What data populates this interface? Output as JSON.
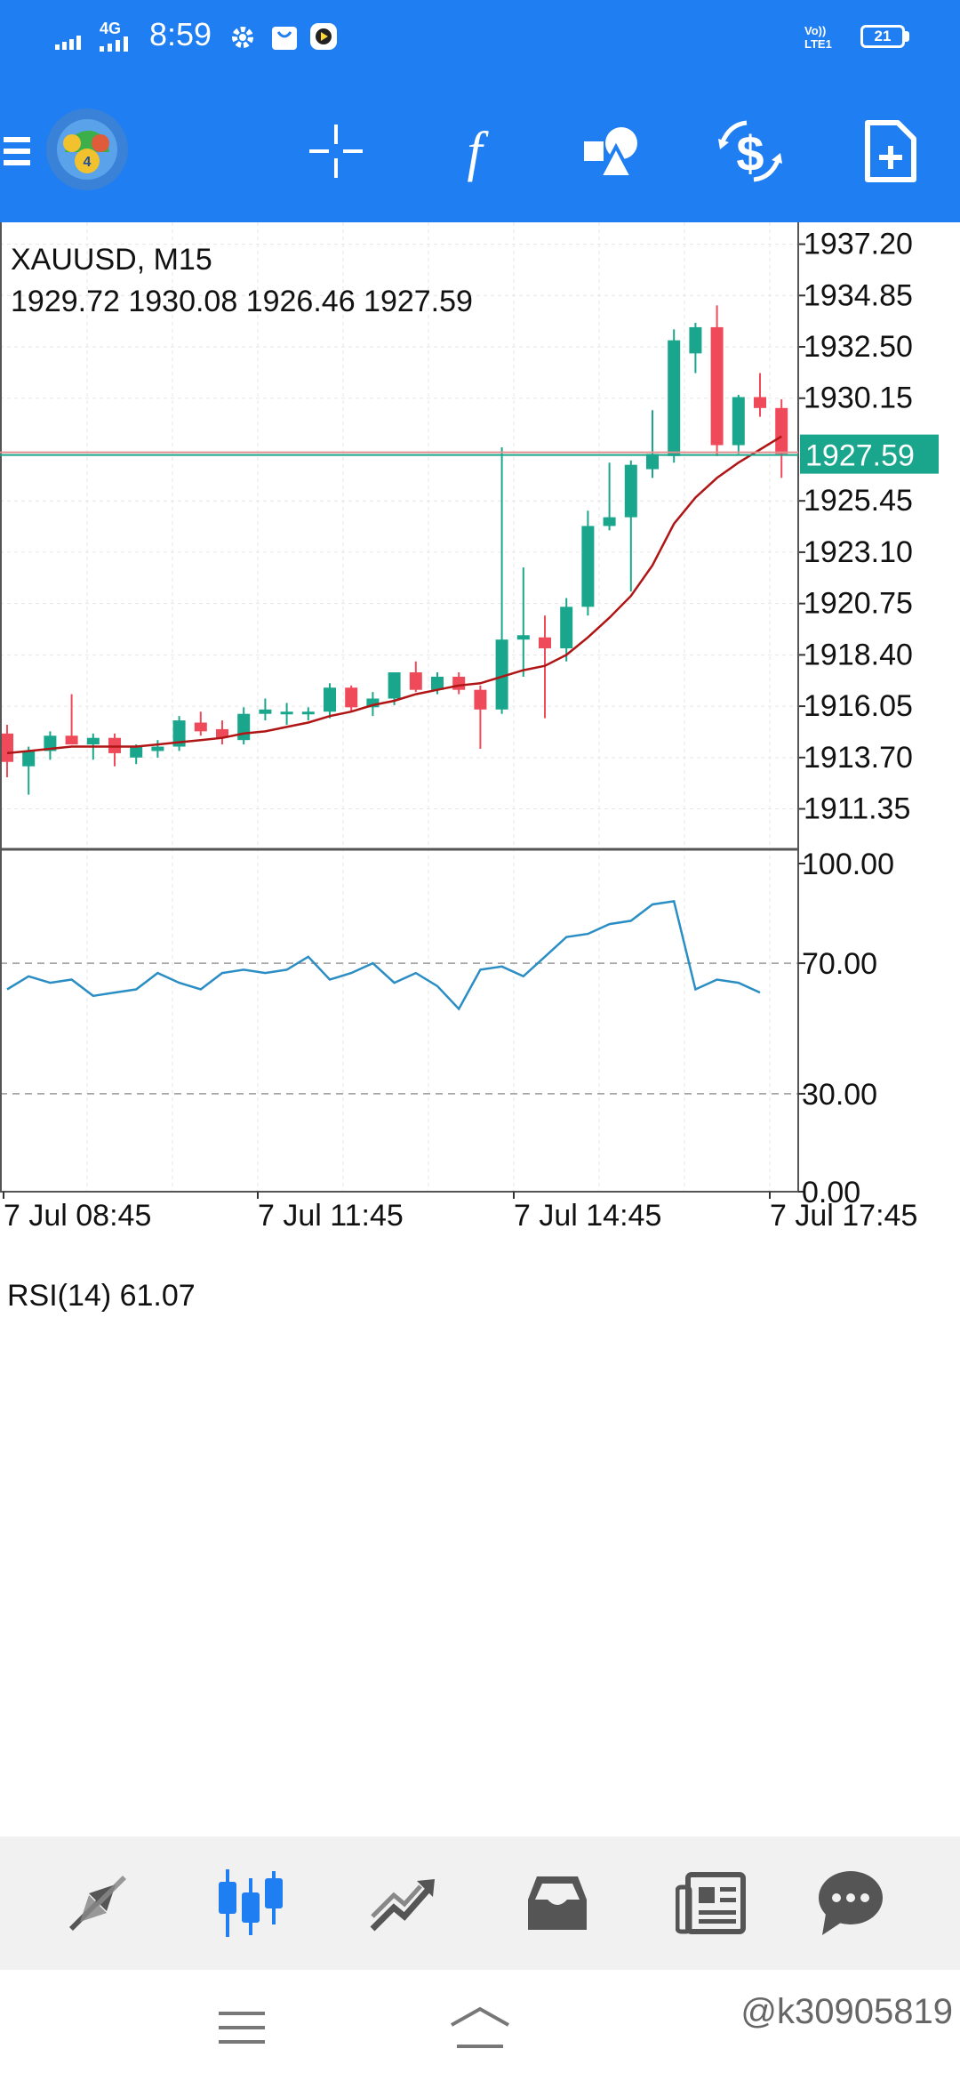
{
  "status_bar": {
    "time": "8:59",
    "network": "4G",
    "volte": "Vo)) LTE1",
    "battery": "21"
  },
  "toolbar": {
    "menu_icon": "hamburger-icon",
    "logo_icon": "metatrader-logo-icon",
    "crosshair_icon": "crosshair-icon",
    "indicators_icon": "function-icon",
    "objects_icon": "shapes-icon",
    "symbol_icon": "dollar-switch-icon",
    "new_order_icon": "new-document-icon",
    "accent": "#1f7ef2"
  },
  "chart": {
    "symbol_label": "XAUUSD, M15",
    "ohlc_label": "1929.72 1930.08 1926.46 1927.59",
    "current_price_label": "1927.59",
    "price_ticks": [
      "1937.20",
      "1934.85",
      "1932.50",
      "1930.15",
      "1925.45",
      "1923.10",
      "1920.75",
      "1918.40",
      "1916.05",
      "1913.70",
      "1911.35"
    ],
    "rsi_label": "RSI(14) 61.07",
    "rsi_ticks": [
      "100.00",
      "70.00",
      "30.00",
      "0.00"
    ],
    "time_labels": [
      "7 Jul 08:45",
      "7 Jul 11:45",
      "7 Jul 14:45",
      "7 Jul 17:45"
    ],
    "bull_color": "#1aa68c",
    "bear_color": "#ef4a5a",
    "ma_color": "#b01515",
    "rsi_color": "#2a8ec4"
  },
  "chart_data": {
    "type": "candlestick",
    "symbol": "XAUUSD",
    "timeframe": "M15",
    "ylim": [
      1909.5,
      1938.2
    ],
    "last_price": 1927.59,
    "candles": [
      {
        "o": 1914.8,
        "h": 1915.2,
        "l": 1912.8,
        "c": 1913.5
      },
      {
        "o": 1913.3,
        "h": 1914.2,
        "l": 1912.0,
        "c": 1914.0
      },
      {
        "o": 1914.0,
        "h": 1914.9,
        "l": 1913.6,
        "c": 1914.7
      },
      {
        "o": 1914.7,
        "h": 1916.6,
        "l": 1914.3,
        "c": 1914.3
      },
      {
        "o": 1914.3,
        "h": 1914.8,
        "l": 1913.6,
        "c": 1914.6
      },
      {
        "o": 1914.6,
        "h": 1914.8,
        "l": 1913.3,
        "c": 1913.9
      },
      {
        "o": 1913.7,
        "h": 1914.3,
        "l": 1913.4,
        "c": 1914.2
      },
      {
        "o": 1914.0,
        "h": 1914.5,
        "l": 1913.7,
        "c": 1914.2
      },
      {
        "o": 1914.2,
        "h": 1915.6,
        "l": 1914.0,
        "c": 1915.4
      },
      {
        "o": 1915.3,
        "h": 1915.8,
        "l": 1914.7,
        "c": 1914.9
      },
      {
        "o": 1915.0,
        "h": 1915.4,
        "l": 1914.3,
        "c": 1914.6
      },
      {
        "o": 1914.5,
        "h": 1916.0,
        "l": 1914.3,
        "c": 1915.7
      },
      {
        "o": 1915.7,
        "h": 1916.4,
        "l": 1915.4,
        "c": 1915.9
      },
      {
        "o": 1915.8,
        "h": 1916.2,
        "l": 1915.2,
        "c": 1915.8
      },
      {
        "o": 1915.8,
        "h": 1916.0,
        "l": 1915.4,
        "c": 1915.8
      },
      {
        "o": 1915.8,
        "h": 1917.1,
        "l": 1915.5,
        "c": 1916.9
      },
      {
        "o": 1916.9,
        "h": 1917.0,
        "l": 1915.8,
        "c": 1916.0
      },
      {
        "o": 1916.0,
        "h": 1916.7,
        "l": 1915.6,
        "c": 1916.4
      },
      {
        "o": 1916.4,
        "h": 1917.6,
        "l": 1916.1,
        "c": 1917.6
      },
      {
        "o": 1917.6,
        "h": 1918.1,
        "l": 1916.7,
        "c": 1916.8
      },
      {
        "o": 1916.8,
        "h": 1917.6,
        "l": 1916.6,
        "c": 1917.4
      },
      {
        "o": 1917.4,
        "h": 1917.6,
        "l": 1916.6,
        "c": 1916.8
      },
      {
        "o": 1916.8,
        "h": 1917.0,
        "l": 1914.1,
        "c": 1915.9
      },
      {
        "o": 1915.9,
        "h": 1927.9,
        "l": 1915.7,
        "c": 1919.1
      },
      {
        "o": 1919.1,
        "h": 1922.4,
        "l": 1917.4,
        "c": 1919.3
      },
      {
        "o": 1919.2,
        "h": 1920.2,
        "l": 1915.5,
        "c": 1918.7
      },
      {
        "o": 1918.7,
        "h": 1921.0,
        "l": 1918.1,
        "c": 1920.6
      },
      {
        "o": 1920.6,
        "h": 1925.0,
        "l": 1920.2,
        "c": 1924.3
      },
      {
        "o": 1924.3,
        "h": 1927.2,
        "l": 1924.1,
        "c": 1924.7
      },
      {
        "o": 1924.7,
        "h": 1927.3,
        "l": 1921.3,
        "c": 1927.1
      },
      {
        "o": 1926.9,
        "h": 1929.6,
        "l": 1926.5,
        "c": 1927.6
      },
      {
        "o": 1927.5,
        "h": 1933.3,
        "l": 1927.2,
        "c": 1932.8
      },
      {
        "o": 1932.2,
        "h": 1933.6,
        "l": 1931.3,
        "c": 1933.4
      },
      {
        "o": 1933.4,
        "h": 1934.4,
        "l": 1927.5,
        "c": 1928.0
      },
      {
        "o": 1928.0,
        "h": 1930.3,
        "l": 1927.6,
        "c": 1930.2
      },
      {
        "o": 1930.2,
        "h": 1931.3,
        "l": 1929.3,
        "c": 1929.7
      },
      {
        "o": 1929.7,
        "h": 1930.1,
        "l": 1926.5,
        "c": 1927.6
      }
    ],
    "ma_series": {
      "name": "",
      "values": [
        1913.9,
        1914.0,
        1914.1,
        1914.2,
        1914.2,
        1914.2,
        1914.2,
        1914.3,
        1914.4,
        1914.5,
        1914.6,
        1914.8,
        1914.9,
        1915.1,
        1915.3,
        1915.6,
        1915.8,
        1916.1,
        1916.3,
        1916.6,
        1916.8,
        1917.0,
        1917.1,
        1917.4,
        1917.7,
        1917.9,
        1918.4,
        1919.2,
        1920.1,
        1921.1,
        1922.5,
        1924.4,
        1925.6,
        1926.5,
        1927.2,
        1927.8,
        1928.4
      ]
    },
    "rsi": {
      "name": "RSI(14)",
      "period": 14,
      "last": 61.07,
      "ylim": [
        0,
        100
      ],
      "levels": [
        70,
        30
      ],
      "values": [
        62,
        66,
        64,
        65,
        60,
        61,
        62,
        67,
        64,
        62,
        67,
        68,
        67,
        68,
        72,
        65,
        67,
        70,
        64,
        67,
        63,
        56,
        68,
        69,
        66,
        72,
        78,
        79,
        82,
        83,
        88,
        89,
        62,
        65,
        64,
        61
      ]
    },
    "x_labels": [
      "7 Jul 08:45",
      "7 Jul 11:45",
      "7 Jul 14:45",
      "7 Jul 17:45"
    ]
  },
  "bottom_nav": {
    "items": [
      {
        "name": "quotes-tab",
        "icon": "arrows-icon",
        "active": false
      },
      {
        "name": "chart-tab",
        "icon": "candlesticks-icon",
        "active": true
      },
      {
        "name": "trade-tab",
        "icon": "trend-icon",
        "active": false
      },
      {
        "name": "history-tab",
        "icon": "inbox-icon",
        "active": false
      },
      {
        "name": "news-tab",
        "icon": "newspaper-icon",
        "active": false
      },
      {
        "name": "messages-tab",
        "icon": "chat-icon",
        "active": false
      }
    ]
  },
  "system_nav": {
    "menu_icon": "menu-lines-icon",
    "home_icon": "home-icon"
  },
  "watermark": "@k30905819"
}
